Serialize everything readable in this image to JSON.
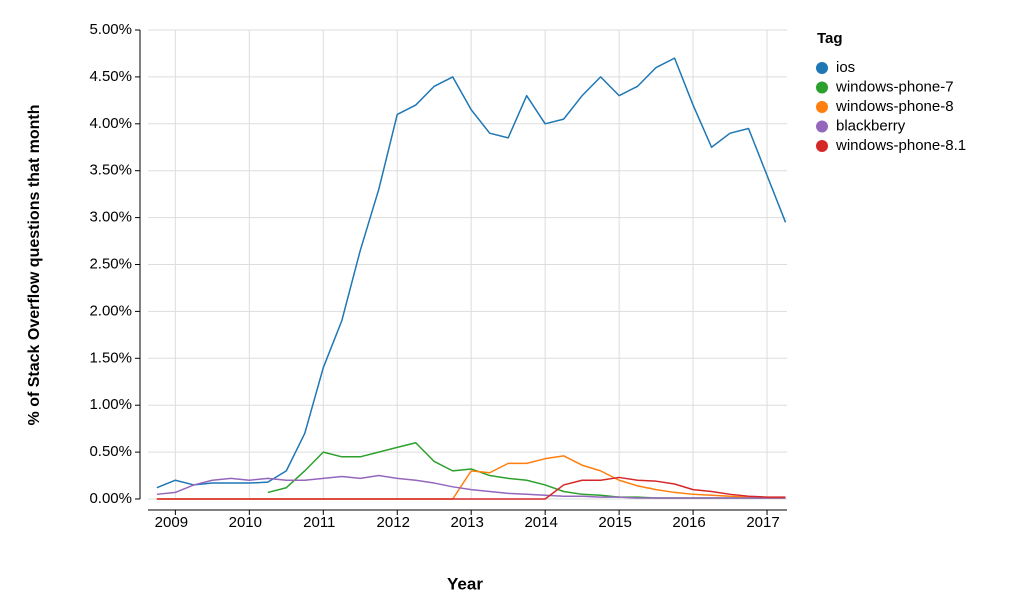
{
  "chart_data": {
    "type": "line",
    "x_label": "Year",
    "y_label": "% of Stack Overflow questions that month",
    "legend_title": "Tag",
    "legend": "right",
    "grid": true,
    "x": [
      2008.75,
      2009,
      2009.25,
      2009.5,
      2009.75,
      2010,
      2010.25,
      2010.5,
      2010.75,
      2011,
      2011.25,
      2011.5,
      2011.75,
      2012,
      2012.25,
      2012.5,
      2012.75,
      2013,
      2013.25,
      2013.5,
      2013.75,
      2014,
      2014.25,
      2014.5,
      2014.75,
      2015,
      2015.25,
      2015.5,
      2015.75,
      2016,
      2016.25,
      2016.5,
      2016.75,
      2017,
      2017.25
    ],
    "xlim": [
      2008.63,
      2017.27
    ],
    "xticks": [
      2009,
      2010,
      2011,
      2012,
      2013,
      2014,
      2015,
      2016,
      2017
    ],
    "ylim": [
      0,
      5
    ],
    "yticks": [
      {
        "value": 0,
        "label": "0.00%"
      },
      {
        "value": 0.5,
        "label": "0.50%"
      },
      {
        "value": 1,
        "label": "1.00%"
      },
      {
        "value": 1.5,
        "label": "1.50%"
      },
      {
        "value": 2,
        "label": "2.00%"
      },
      {
        "value": 2.5,
        "label": "2.50%"
      },
      {
        "value": 3,
        "label": "3.00%"
      },
      {
        "value": 3.5,
        "label": "3.50%"
      },
      {
        "value": 4,
        "label": "4.00%"
      },
      {
        "value": 4.5,
        "label": "4.50%"
      },
      {
        "value": 5,
        "label": "5.00%"
      }
    ],
    "series": [
      {
        "name": "ios",
        "color": "#1f77b4",
        "values": [
          0.12,
          0.2,
          0.15,
          0.17,
          0.17,
          0.17,
          0.18,
          0.3,
          0.7,
          1.4,
          1.9,
          2.65,
          3.3,
          4.1,
          4.2,
          4.4,
          4.5,
          4.15,
          3.9,
          3.85,
          4.3,
          4.0,
          4.05,
          4.3,
          4.5,
          4.3,
          4.4,
          4.6,
          4.7,
          4.2,
          3.75,
          3.9,
          3.95,
          3.45,
          2.95
        ]
      },
      {
        "name": "windows-phone-7",
        "color": "#2ca02c",
        "values": [
          null,
          null,
          null,
          null,
          null,
          null,
          0.07,
          0.12,
          0.3,
          0.5,
          0.45,
          0.45,
          0.5,
          0.55,
          0.6,
          0.4,
          0.3,
          0.32,
          0.25,
          0.22,
          0.2,
          0.15,
          0.08,
          0.05,
          0.04,
          0.02,
          0.02,
          0.01,
          0.01,
          0.01,
          0.01,
          0.01,
          0.01,
          0.01,
          0.01
        ]
      },
      {
        "name": "windows-phone-8",
        "color": "#ff7f0e",
        "values": [
          0,
          0,
          0,
          0,
          0,
          0,
          0,
          0,
          0,
          0,
          0,
          0,
          0,
          0,
          0,
          0,
          0,
          0.3,
          0.28,
          0.38,
          0.38,
          0.43,
          0.46,
          0.36,
          0.3,
          0.2,
          0.14,
          0.1,
          0.07,
          0.05,
          0.04,
          0.03,
          0.02,
          0.01,
          0.01
        ]
      },
      {
        "name": "blackberry",
        "color": "#9467bd",
        "values": [
          0.05,
          0.07,
          0.15,
          0.2,
          0.22,
          0.2,
          0.22,
          0.2,
          0.2,
          0.22,
          0.24,
          0.22,
          0.25,
          0.22,
          0.2,
          0.17,
          0.13,
          0.1,
          0.08,
          0.06,
          0.05,
          0.04,
          0.03,
          0.03,
          0.02,
          0.02,
          0.01,
          0.01,
          0.01,
          0.01,
          0.01,
          0.01,
          0.01,
          0.01,
          0.01
        ]
      },
      {
        "name": "windows-phone-8.1",
        "color": "#d62728",
        "values": [
          0,
          0,
          0,
          0,
          0,
          0,
          0,
          0,
          0,
          0,
          0,
          0,
          0,
          0,
          0,
          0,
          0,
          0,
          0,
          0,
          0,
          0,
          0.15,
          0.2,
          0.2,
          0.23,
          0.2,
          0.19,
          0.16,
          0.1,
          0.08,
          0.05,
          0.03,
          0.02,
          0.02
        ]
      }
    ]
  }
}
